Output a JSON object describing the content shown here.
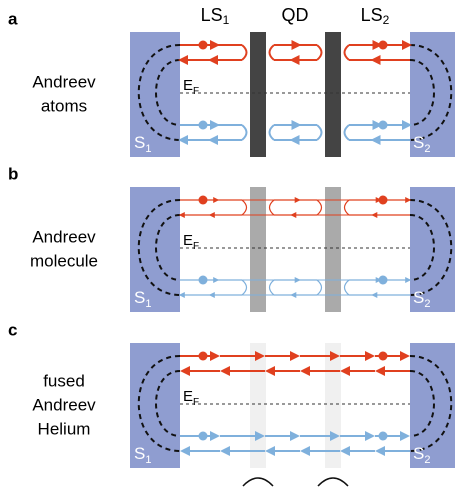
{
  "panels": [
    {
      "label": "a",
      "caption": [
        "Andreev",
        "atoms"
      ],
      "fermi": {
        "main": "E",
        "sub": "F"
      },
      "left": {
        "main": "S",
        "sub": "1"
      },
      "right": {
        "main": "S",
        "sub": "2"
      }
    },
    {
      "label": "b",
      "caption": [
        "Andreev",
        "molecule"
      ],
      "fermi": {
        "main": "E",
        "sub": "F"
      },
      "left": {
        "main": "S",
        "sub": "1"
      },
      "right": {
        "main": "S",
        "sub": "2"
      }
    },
    {
      "label": "c",
      "caption": [
        "fused",
        "Andreev",
        "Helium"
      ],
      "fermi": {
        "main": "E",
        "sub": "F"
      },
      "left": {
        "main": "S",
        "sub": "1"
      },
      "right": {
        "main": "S",
        "sub": "2"
      }
    }
  ],
  "header": {
    "ls1": {
      "main": "LS",
      "sub": "1"
    },
    "qd": "QD",
    "ls2": {
      "main": "LS",
      "sub": "2"
    }
  }
}
